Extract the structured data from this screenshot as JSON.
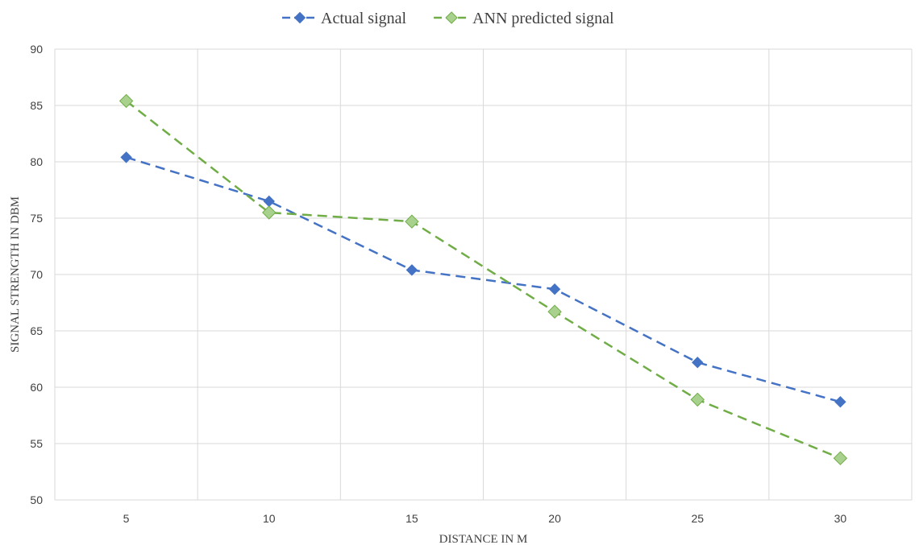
{
  "chart_data": {
    "type": "line",
    "title": "",
    "xlabel": "DISTANCE IN M",
    "ylabel": "SIGNAL STRENGTH IN DBM",
    "categories": [
      "5",
      "10",
      "15",
      "20",
      "25",
      "30"
    ],
    "ylim": [
      50,
      90
    ],
    "yticks": [
      "50",
      "55",
      "60",
      "65",
      "70",
      "75",
      "80",
      "85",
      "90"
    ],
    "grid": true,
    "legend_position": "top-center",
    "series": [
      {
        "name": "Actual signal",
        "color": "#4472C4",
        "marker": "diamond",
        "line_style": "dashed",
        "values": [
          80.4,
          76.5,
          70.4,
          68.7,
          62.2,
          58.7
        ]
      },
      {
        "name": "ANN predicted signal",
        "color": "#70AD47",
        "marker_fill": "#A9D18E",
        "marker": "diamond",
        "line_style": "dashed",
        "values": [
          85.4,
          75.5,
          74.7,
          66.7,
          58.9,
          53.7
        ]
      }
    ]
  }
}
